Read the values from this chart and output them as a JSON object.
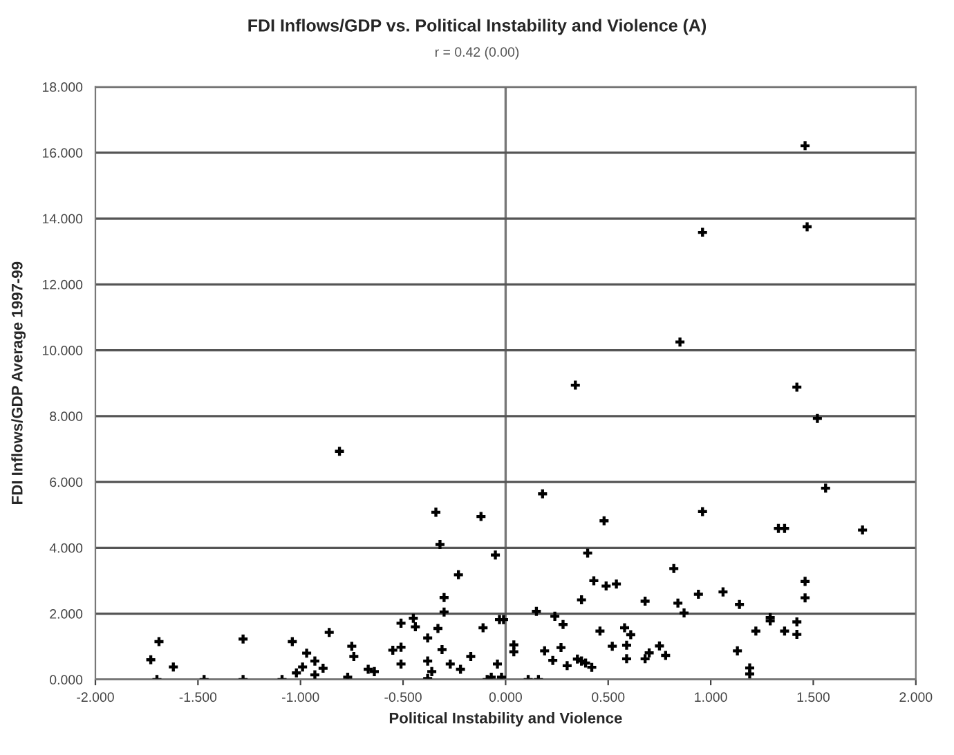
{
  "chart_data": {
    "type": "scatter",
    "title": "FDI Inflows/GDP vs. Political Instability and Violence (A)",
    "xlabel": "Political Instability and Violence",
    "ylabel": "FDI Inflows/GDP Average 1997-99",
    "annotations": [
      "r = 0.42 (0.00)"
    ],
    "xlim": [
      -2,
      2
    ],
    "xticks": [
      {
        "value": -2,
        "label": "-2.000"
      },
      {
        "value": -1.5,
        "label": "-1.500"
      },
      {
        "value": -1,
        "label": "-1.000"
      },
      {
        "value": -0.5,
        "label": "-0.500"
      },
      {
        "value": 0,
        "label": "0.000"
      },
      {
        "value": 0.5,
        "label": "0.500"
      },
      {
        "value": 1,
        "label": "1.000"
      },
      {
        "value": 1.5,
        "label": "1.500"
      },
      {
        "value": 2,
        "label": "2.000"
      }
    ],
    "ylim": [
      0,
      18
    ],
    "yticks": [
      {
        "value": 0,
        "label": "0.000"
      },
      {
        "value": 2,
        "label": "2.000"
      },
      {
        "value": 4,
        "label": "4.000"
      },
      {
        "value": 6,
        "label": "6.000"
      },
      {
        "value": 8,
        "label": "8.000"
      },
      {
        "value": 10,
        "label": "10.000"
      },
      {
        "value": 12,
        "label": "12.000"
      },
      {
        "value": 14,
        "label": "14.000"
      },
      {
        "value": 16,
        "label": "16.000"
      },
      {
        "value": 18,
        "label": "18.000"
      }
    ],
    "grid": "y",
    "marker": "cross",
    "ref_lines": [
      {
        "axis": "x",
        "value": 0,
        "color": "#777777"
      }
    ],
    "series": [
      {
        "color": "#000000",
        "x": [
          -1.69,
          -1.73,
          -1.62,
          -1.7,
          -1.47,
          -1.28,
          -1.28,
          -1.04,
          -1.09,
          -0.97,
          -1.02,
          -0.99,
          -0.93,
          -0.93,
          -0.89,
          -0.86,
          -0.75,
          -0.74,
          -0.77,
          -0.67,
          -0.64,
          -0.55,
          -0.51,
          -0.51,
          -0.51,
          -0.45,
          -0.44,
          -0.34,
          -0.32,
          -0.23,
          -0.3,
          -0.3,
          -0.33,
          -0.38,
          -0.31,
          -0.38,
          -0.36,
          -0.38,
          -0.27,
          -0.22,
          -0.17,
          -0.12,
          -0.05,
          -0.11,
          -0.03,
          -0.01,
          -0.04,
          -0.09,
          -0.07,
          -0.02,
          -0.81,
          1.46,
          0.96,
          1.47,
          0.85,
          0.34,
          1.42,
          1.52,
          0.18,
          0.48,
          0.96,
          1.56,
          1.33,
          1.36,
          1.74,
          0.4,
          0.43,
          0.49,
          0.54,
          0.82,
          0.37,
          0.68,
          0.84,
          0.87,
          0.94,
          1.06,
          1.14,
          1.46,
          1.46,
          0.15,
          0.24,
          0.28,
          0.04,
          0.04,
          0.19,
          0.23,
          0.27,
          0.3,
          0.35,
          0.37,
          0.39,
          0.42,
          0.46,
          0.52,
          0.58,
          0.61,
          0.59,
          0.59,
          0.68,
          0.7,
          0.75,
          0.78,
          0.11,
          0.16,
          1.13,
          1.19,
          1.19,
          1.22,
          1.29,
          1.29,
          1.36,
          1.42,
          1.42
        ],
        "values": [
          1.15,
          0.6,
          0.38,
          0,
          0,
          1.23,
          0,
          1.15,
          0,
          0.8,
          0.2,
          0.38,
          0.56,
          0.14,
          0.34,
          1.43,
          1.01,
          0.7,
          0.07,
          0.31,
          0.24,
          0.89,
          0.98,
          0.47,
          1.71,
          1.86,
          1.6,
          5.08,
          4.1,
          3.18,
          2.49,
          2.05,
          1.55,
          1.26,
          0.91,
          0.56,
          0.24,
          0.03,
          0.47,
          0.31,
          0.7,
          4.95,
          3.78,
          1.57,
          1.82,
          1.82,
          0.47,
          0,
          0.07,
          0.07,
          6.93,
          16.21,
          13.58,
          13.75,
          10.25,
          8.94,
          8.88,
          7.93,
          5.64,
          4.82,
          5.1,
          5.81,
          4.59,
          4.59,
          4.54,
          3.84,
          3.0,
          2.84,
          2.9,
          3.37,
          2.42,
          2.38,
          2.32,
          2.02,
          2.59,
          2.66,
          2.28,
          2.98,
          2.48,
          2.07,
          1.92,
          1.67,
          1.05,
          0.84,
          0.87,
          0.58,
          0.97,
          0.42,
          0.62,
          0.56,
          0.5,
          0.37,
          1.47,
          1.01,
          1.57,
          1.36,
          1.04,
          0.63,
          0.63,
          0.81,
          1.02,
          0.73,
          0,
          0,
          0.87,
          0.35,
          0.17,
          1.47,
          1.88,
          1.78,
          1.47,
          1.75,
          1.37
        ]
      }
    ]
  }
}
